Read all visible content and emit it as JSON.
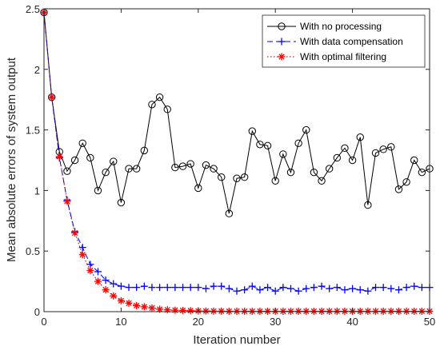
{
  "chart_data": {
    "type": "line",
    "xlabel": "Iteration number",
    "ylabel": "Mean absolute errors of system output",
    "xlim": [
      0,
      50
    ],
    "ylim": [
      0,
      2.5
    ],
    "xticks": [
      0,
      10,
      20,
      30,
      40,
      50
    ],
    "yticks": [
      0,
      0.5,
      1,
      1.5,
      2,
      2.5
    ],
    "xtick_labels": [
      "0",
      "10",
      "20",
      "30",
      "40",
      "50"
    ],
    "ytick_labels": [
      "0",
      "0.5",
      "1",
      "1.5",
      "2",
      "2.5"
    ],
    "grid": false,
    "legend_position": "top-right",
    "x": [
      0,
      1,
      2,
      3,
      4,
      5,
      6,
      7,
      8,
      9,
      10,
      11,
      12,
      13,
      14,
      15,
      16,
      17,
      18,
      19,
      20,
      21,
      22,
      23,
      24,
      25,
      26,
      27,
      28,
      29,
      30,
      31,
      32,
      33,
      34,
      35,
      36,
      37,
      38,
      39,
      40,
      41,
      42,
      43,
      44,
      45,
      46,
      47,
      48,
      49,
      50
    ],
    "series": [
      {
        "name": "With no processing",
        "color": "#000000",
        "marker": "circle",
        "line": "solid",
        "values": [
          2.47,
          1.77,
          1.32,
          1.16,
          1.25,
          1.39,
          1.27,
          1.0,
          1.15,
          1.24,
          0.9,
          1.18,
          1.18,
          1.33,
          1.71,
          1.77,
          1.67,
          1.19,
          1.2,
          1.22,
          1.02,
          1.21,
          1.18,
          1.11,
          0.81,
          1.1,
          1.11,
          1.49,
          1.38,
          1.37,
          1.08,
          1.3,
          1.15,
          1.39,
          1.5,
          1.15,
          1.08,
          1.18,
          1.27,
          1.35,
          1.25,
          1.44,
          0.88,
          1.31,
          1.34,
          1.36,
          1.01,
          1.07,
          1.25,
          1.15,
          1.18
        ]
      },
      {
        "name": "With data compensation",
        "color": "#0000ff",
        "marker": "plus",
        "line": "dashed",
        "values": [
          2.47,
          1.77,
          1.27,
          0.92,
          0.66,
          0.53,
          0.39,
          0.33,
          0.26,
          0.23,
          0.21,
          0.2,
          0.2,
          0.21,
          0.2,
          0.2,
          0.2,
          0.2,
          0.2,
          0.2,
          0.2,
          0.19,
          0.21,
          0.21,
          0.19,
          0.17,
          0.18,
          0.21,
          0.18,
          0.2,
          0.17,
          0.2,
          0.19,
          0.17,
          0.19,
          0.2,
          0.21,
          0.19,
          0.2,
          0.18,
          0.19,
          0.18,
          0.17,
          0.2,
          0.2,
          0.19,
          0.18,
          0.2,
          0.21,
          0.2,
          0.2
        ]
      },
      {
        "name": "With optimal filtering",
        "color": "#ff0000",
        "line_color": "#8b0000",
        "marker": "asterisk",
        "line": "dotted",
        "values": [
          2.47,
          1.77,
          1.28,
          0.91,
          0.65,
          0.47,
          0.34,
          0.25,
          0.18,
          0.13,
          0.09,
          0.07,
          0.05,
          0.04,
          0.03,
          0.02,
          0.015,
          0.012,
          0.01,
          0.008,
          0.006,
          0.005,
          0.004,
          0.004,
          0.003,
          0.003,
          0.003,
          0.003,
          0.003,
          0.003,
          0.003,
          0.003,
          0.003,
          0.003,
          0.003,
          0.003,
          0.003,
          0.003,
          0.003,
          0.003,
          0.003,
          0.003,
          0.003,
          0.003,
          0.003,
          0.003,
          0.003,
          0.003,
          0.003,
          0.003,
          0.003
        ]
      }
    ]
  }
}
